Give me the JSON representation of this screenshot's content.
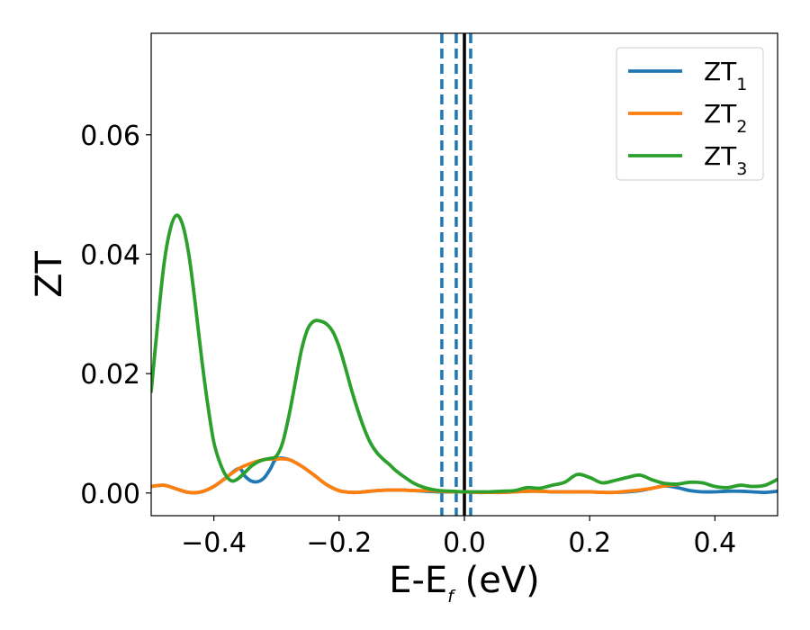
{
  "chart_data": {
    "type": "line",
    "xlabel": "E-E",
    "xlabel_sub": "f",
    "xlabel_unit": " (eV)",
    "ylabel": "ZT",
    "xlim": [
      -0.5,
      0.5
    ],
    "ylim": [
      -0.0038,
      0.077
    ],
    "xticks": [
      -0.4,
      -0.2,
      0.0,
      0.2,
      0.4
    ],
    "xtick_labels": [
      "−0.4",
      "−0.2",
      "0.0",
      "0.2",
      "0.4"
    ],
    "yticks": [
      0.0,
      0.02,
      0.04,
      0.06
    ],
    "ytick_labels": [
      "0.00",
      "0.02",
      "0.04",
      "0.06"
    ],
    "grid": false,
    "legend_position": "top-right",
    "series": [
      {
        "name": "ZT",
        "name_sub": "1",
        "color": "#1f77b4",
        "x": [
          -0.5,
          -0.48,
          -0.46,
          -0.44,
          -0.42,
          -0.4,
          -0.38,
          -0.36,
          -0.35,
          -0.34,
          -0.33,
          -0.32,
          -0.31,
          -0.3,
          -0.28,
          -0.26,
          -0.24,
          -0.22,
          -0.2,
          -0.18,
          -0.16,
          -0.14,
          -0.12,
          -0.1,
          -0.08,
          -0.06,
          -0.04,
          -0.02,
          0.0,
          0.02,
          0.04,
          0.06,
          0.08,
          0.1,
          0.12,
          0.14,
          0.16,
          0.18,
          0.2,
          0.22,
          0.24,
          0.26,
          0.28,
          0.3,
          0.32,
          0.34,
          0.36,
          0.38,
          0.4,
          0.42,
          0.44,
          0.46,
          0.48,
          0.5
        ],
        "y": [
          0.0011,
          0.0013,
          0.0007,
          0.0001,
          0.0002,
          0.0011,
          0.0026,
          0.0041,
          0.0028,
          0.002,
          0.0019,
          0.0025,
          0.004,
          0.0057,
          0.0056,
          0.0045,
          0.003,
          0.0014,
          0.0004,
          0.0001,
          0.0002,
          0.0004,
          0.0005,
          0.0005,
          0.0004,
          0.0003,
          0.0002,
          0.0002,
          0.0002,
          0.0001,
          0.0001,
          0.0001,
          0.0002,
          0.0003,
          0.0003,
          0.0002,
          0.0002,
          0.0002,
          0.0002,
          0.0001,
          0.0001,
          0.0002,
          0.0004,
          0.0008,
          0.0012,
          0.0009,
          0.0004,
          0.0002,
          0.0002,
          0.0003,
          0.0003,
          0.0002,
          0.0001,
          0.0003
        ]
      },
      {
        "name": "ZT",
        "name_sub": "2",
        "color": "#ff7f0e",
        "x": [
          -0.5,
          -0.48,
          -0.46,
          -0.44,
          -0.42,
          -0.4,
          -0.38,
          -0.36,
          -0.34,
          -0.32,
          -0.3,
          -0.28,
          -0.26,
          -0.24,
          -0.22,
          -0.2,
          -0.18,
          -0.16,
          -0.14,
          -0.12,
          -0.1,
          -0.08,
          -0.06,
          -0.04,
          -0.02,
          0.0,
          0.02,
          0.04,
          0.06,
          0.08,
          0.1,
          0.12,
          0.14,
          0.16,
          0.18,
          0.2,
          0.22,
          0.24,
          0.26,
          0.28,
          0.3,
          0.32,
          0.34
        ],
        "y": [
          0.0011,
          0.0013,
          0.0007,
          0.0001,
          0.0002,
          0.0011,
          0.0026,
          0.0041,
          0.005,
          0.0056,
          0.0057,
          0.0056,
          0.0045,
          0.003,
          0.0014,
          0.0004,
          0.0001,
          0.0002,
          0.0004,
          0.0005,
          0.0005,
          0.0004,
          0.0004,
          0.0003,
          0.0002,
          0.0002,
          0.0001,
          0.0001,
          0.0001,
          0.0002,
          0.0003,
          0.0003,
          0.0002,
          0.0002,
          0.0002,
          0.0002,
          0.0001,
          0.0001,
          0.0003,
          0.0005,
          0.0008,
          0.0012,
          0.0014
        ]
      },
      {
        "name": "ZT",
        "name_sub": "3",
        "color": "#2ca02c",
        "x": [
          -0.5,
          -0.49,
          -0.48,
          -0.47,
          -0.46,
          -0.45,
          -0.44,
          -0.43,
          -0.42,
          -0.41,
          -0.4,
          -0.39,
          -0.38,
          -0.37,
          -0.36,
          -0.35,
          -0.34,
          -0.33,
          -0.32,
          -0.31,
          -0.3,
          -0.29,
          -0.28,
          -0.27,
          -0.26,
          -0.25,
          -0.24,
          -0.23,
          -0.22,
          -0.21,
          -0.2,
          -0.19,
          -0.18,
          -0.17,
          -0.16,
          -0.15,
          -0.14,
          -0.13,
          -0.12,
          -0.11,
          -0.1,
          -0.08,
          -0.06,
          -0.04,
          -0.02,
          0.0,
          0.02,
          0.04,
          0.06,
          0.08,
          0.1,
          0.12,
          0.14,
          0.16,
          0.18,
          0.2,
          0.22,
          0.24,
          0.26,
          0.28,
          0.3,
          0.32,
          0.34,
          0.36,
          0.38,
          0.4,
          0.42,
          0.44,
          0.46,
          0.48,
          0.5
        ],
        "y": [
          0.017,
          0.028,
          0.038,
          0.044,
          0.0465,
          0.045,
          0.04,
          0.032,
          0.023,
          0.015,
          0.0085,
          0.005,
          0.0028,
          0.002,
          0.0025,
          0.0035,
          0.0045,
          0.0052,
          0.0056,
          0.0058,
          0.0062,
          0.0085,
          0.013,
          0.0185,
          0.024,
          0.0275,
          0.0288,
          0.0288,
          0.0283,
          0.027,
          0.0245,
          0.021,
          0.0172,
          0.0138,
          0.0108,
          0.0084,
          0.0068,
          0.0057,
          0.0048,
          0.0038,
          0.003,
          0.0016,
          0.0008,
          0.0004,
          0.0003,
          0.0002,
          0.0002,
          0.0002,
          0.0003,
          0.0004,
          0.0009,
          0.0008,
          0.0013,
          0.0018,
          0.0031,
          0.0026,
          0.0017,
          0.0021,
          0.0026,
          0.003,
          0.0022,
          0.0016,
          0.0015,
          0.0018,
          0.0017,
          0.0011,
          0.0009,
          0.0013,
          0.0011,
          0.0013,
          0.0023
        ]
      }
    ],
    "vlines": [
      {
        "x": -0.036,
        "style": "dashed",
        "color": "#1f77b4"
      },
      {
        "x": -0.013,
        "style": "dashed",
        "color": "#1f77b4"
      },
      {
        "x": 0.01,
        "style": "dashed",
        "color": "#1f77b4"
      },
      {
        "x": 0.0,
        "style": "solid",
        "color": "#000000"
      }
    ]
  }
}
